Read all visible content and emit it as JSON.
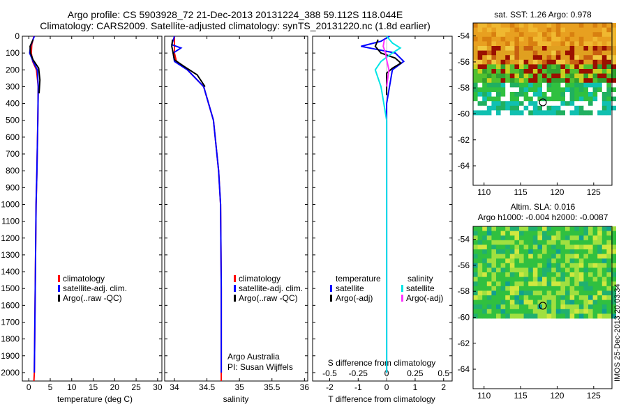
{
  "header": {
    "line1": "Argo profile: CS 5903928_72 21-Dec-2013 20131224_388 59.112S 118.044E",
    "line2": "Climatology: CARS2009. Satellite-adjusted climatology: synTS_20131220.nc (1.8d earlier)"
  },
  "footer_stamp": "IMOS 25-Dec-2013 20:03:34",
  "colors": {
    "climatology": "#ff0000",
    "satellite": "#0000ff",
    "argo": "#000000",
    "satellite_s": "#00e5e5",
    "argo_s": "#ff33ff"
  },
  "chart_data": [
    {
      "type": "line",
      "xlabel": "temperature (deg C)",
      "xticks": [
        0,
        5,
        10,
        15,
        20,
        25,
        30
      ],
      "xlim": [
        -1.5,
        31
      ],
      "ylim": [
        2050,
        0
      ],
      "yticks": [
        0,
        100,
        200,
        300,
        400,
        500,
        600,
        700,
        800,
        900,
        1000,
        1100,
        1200,
        1300,
        1400,
        1500,
        1600,
        1700,
        1800,
        1900,
        2000
      ],
      "legend": [
        "climatology",
        "satellite-adj. clim.",
        "Argo(..raw -QC)"
      ],
      "series": [
        {
          "name": "climatology",
          "points": [
            [
              1.2,
              0
            ],
            [
              0.7,
              50
            ],
            [
              0.6,
              100
            ],
            [
              0.9,
              150
            ],
            [
              1.8,
              200
            ],
            [
              2.2,
              300
            ],
            [
              2.1,
              500
            ],
            [
              1.9,
              800
            ],
            [
              1.7,
              1000
            ],
            [
              1.5,
              1500
            ],
            [
              1.3,
              2000
            ],
            [
              1.2,
              2050
            ]
          ]
        },
        {
          "name": "satellite-adj. clim.",
          "points": [
            [
              1.3,
              0
            ],
            [
              0.4,
              60
            ],
            [
              0.2,
              100
            ],
            [
              1.0,
              150
            ],
            [
              2.0,
              200
            ],
            [
              2.2,
              300
            ],
            [
              2.1,
              500
            ],
            [
              1.9,
              800
            ],
            [
              1.7,
              1000
            ],
            [
              1.5,
              1500
            ],
            [
              1.3,
              2000
            ]
          ]
        },
        {
          "name": "Argo(..raw -QC)",
          "points": [
            [
              1.0,
              20
            ],
            [
              0.3,
              60
            ],
            [
              0.4,
              100
            ],
            [
              1.0,
              140
            ],
            [
              2.3,
              190
            ],
            [
              2.6,
              260
            ],
            [
              2.4,
              340
            ]
          ]
        }
      ]
    },
    {
      "type": "line",
      "xlabel": "salinity",
      "xticks": [
        34,
        34.5,
        35,
        35.5,
        36
      ],
      "xlim": [
        33.85,
        36.05
      ],
      "ylim": [
        2050,
        0
      ],
      "legend": [
        "climatology",
        "satellite-adj. clim.",
        "Argo(..raw -QC)"
      ],
      "annotation": [
        "Argo Australia",
        "PI: Susan Wijffels"
      ],
      "series": [
        {
          "name": "climatology",
          "points": [
            [
              34.0,
              0
            ],
            [
              34.0,
              100
            ],
            [
              34.03,
              150
            ],
            [
              34.2,
              200
            ],
            [
              34.45,
              300
            ],
            [
              34.6,
              500
            ],
            [
              34.68,
              800
            ],
            [
              34.71,
              1000
            ],
            [
              34.72,
              1500
            ],
            [
              34.72,
              2000
            ],
            [
              34.72,
              2050
            ]
          ]
        },
        {
          "name": "satellite-adj. clim.",
          "points": [
            [
              34.0,
              0
            ],
            [
              33.96,
              50
            ],
            [
              34.1,
              70
            ],
            [
              33.98,
              100
            ],
            [
              34.0,
              150
            ],
            [
              34.2,
              200
            ],
            [
              34.45,
              300
            ],
            [
              34.6,
              500
            ],
            [
              34.68,
              800
            ],
            [
              34.71,
              1000
            ],
            [
              34.72,
              1500
            ],
            [
              34.72,
              2000
            ]
          ]
        },
        {
          "name": "Argo(..raw -QC)",
          "points": [
            [
              33.97,
              20
            ],
            [
              33.96,
              60
            ],
            [
              33.98,
              100
            ],
            [
              34.0,
              140
            ],
            [
              34.15,
              180
            ],
            [
              34.35,
              230
            ],
            [
              34.47,
              300
            ]
          ]
        }
      ]
    },
    {
      "type": "line",
      "xlabel": "T difference from climatology",
      "xticks": [
        -2,
        -1,
        0,
        1,
        2
      ],
      "top_label": "S difference from climatology",
      "top_ticks": [
        "-0.5",
        "-0.25",
        "0",
        "0.25",
        "0.5"
      ],
      "xlim": [
        -2.6,
        2.3
      ],
      "ylim": [
        2050,
        0
      ],
      "legend_left_title": "temperature",
      "legend_right_title": "salinity",
      "legend_left": [
        "satellite",
        "Argo(-adj)"
      ],
      "legend_right": [
        "satellite",
        "Argo(-adj)"
      ],
      "series": [
        {
          "name": "T satellite",
          "points": [
            [
              0.1,
              0
            ],
            [
              -0.2,
              30
            ],
            [
              -0.9,
              60
            ],
            [
              -0.3,
              80
            ],
            [
              0.3,
              100
            ],
            [
              0.6,
              150
            ],
            [
              0.2,
              200
            ],
            [
              0.0,
              400
            ],
            [
              0.0,
              800
            ],
            [
              0.0,
              1000
            ],
            [
              0.0,
              1500
            ],
            [
              0.0,
              2000
            ]
          ]
        },
        {
          "name": "T Argo",
          "points": [
            [
              -0.3,
              20
            ],
            [
              -0.4,
              60
            ],
            [
              -0.2,
              100
            ],
            [
              0.3,
              130
            ],
            [
              0.5,
              160
            ],
            [
              0.2,
              190
            ],
            [
              0.0,
              220
            ],
            [
              0.0,
              350
            ]
          ]
        },
        {
          "name": "S satellite",
          "points": [
            [
              0.0,
              0
            ],
            [
              0.05,
              40
            ],
            [
              0.12,
              70
            ],
            [
              0.05,
              100
            ],
            [
              -0.05,
              150
            ],
            [
              -0.1,
              200
            ],
            [
              -0.05,
              300
            ],
            [
              0.0,
              500
            ],
            [
              0.0,
              1000
            ],
            [
              0.0,
              2000
            ]
          ]
        },
        {
          "name": "S Argo",
          "points": [
            [
              -0.02,
              20
            ],
            [
              -0.03,
              60
            ],
            [
              -0.01,
              100
            ],
            [
              0.0,
              140
            ],
            [
              0.02,
              200
            ],
            [
              0.0,
              300
            ]
          ]
        }
      ]
    },
    {
      "type": "heatmap",
      "title": "sat. SST: 1.26 Argo: 0.978",
      "xticks": [
        110,
        115,
        120,
        125
      ],
      "yticks": [
        -54,
        -56,
        -58,
        -60,
        -62,
        -64
      ],
      "xlim": [
        108.5,
        127.5
      ],
      "ylim": [
        -65.5,
        -53
      ],
      "data_extent_lat": [
        -60,
        -53
      ],
      "marker": [
        118.044,
        -59.112
      ]
    },
    {
      "type": "heatmap",
      "title": "Altim. SLA: 0.016",
      "subtitle": "Argo h1000: -0.004 h2000: -0.0087",
      "xticks": [
        110,
        115,
        120,
        125
      ],
      "yticks": [
        -54,
        -56,
        -58,
        -60,
        -62,
        -64
      ],
      "xlim": [
        108.5,
        127.5
      ],
      "ylim": [
        -65.5,
        -53
      ],
      "data_extent_lat": [
        -60,
        -53
      ],
      "marker": [
        118.044,
        -59.112
      ]
    }
  ]
}
